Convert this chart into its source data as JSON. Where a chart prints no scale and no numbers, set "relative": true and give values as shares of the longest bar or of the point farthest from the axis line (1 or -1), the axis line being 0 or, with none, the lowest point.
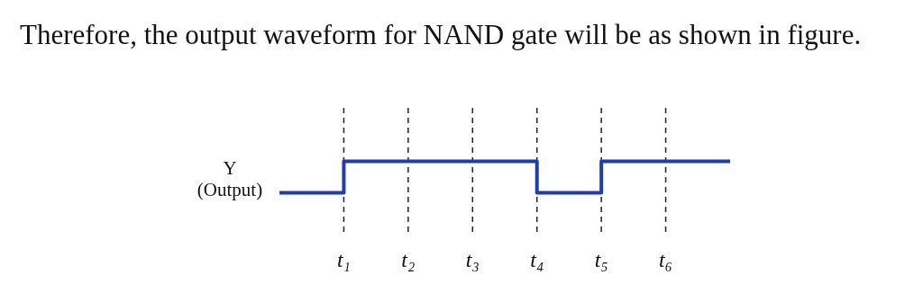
{
  "chart_data": {
    "type": "step",
    "title": "Therefore, the output waveform for NAND gate will be as shown in figure.",
    "ylabel": "Y\n(Output)",
    "relative": true,
    "categories": [
      null,
      "t₁",
      "t₂",
      "t₃",
      "t₄",
      "t₅",
      "t₆",
      null
    ],
    "values": [
      0,
      1,
      1,
      1,
      0,
      1,
      1,
      1
    ],
    "color": "#1f3cb4",
    "ref_lines": [
      {
        "axis": "x",
        "value": "t₁",
        "color": "#222222",
        "line_style": "dashed"
      },
      {
        "axis": "x",
        "value": "t₂",
        "color": "#222222",
        "line_style": "dashed"
      },
      {
        "axis": "x",
        "value": "t₃",
        "color": "#222222",
        "line_style": "dashed"
      },
      {
        "axis": "x",
        "value": "t₄",
        "color": "#222222",
        "line_style": "dashed"
      },
      {
        "axis": "x",
        "value": "t₅",
        "color": "#222222",
        "line_style": "dashed"
      },
      {
        "axis": "x",
        "value": "t₆",
        "color": "#222222",
        "line_style": "dashed"
      }
    ]
  }
}
